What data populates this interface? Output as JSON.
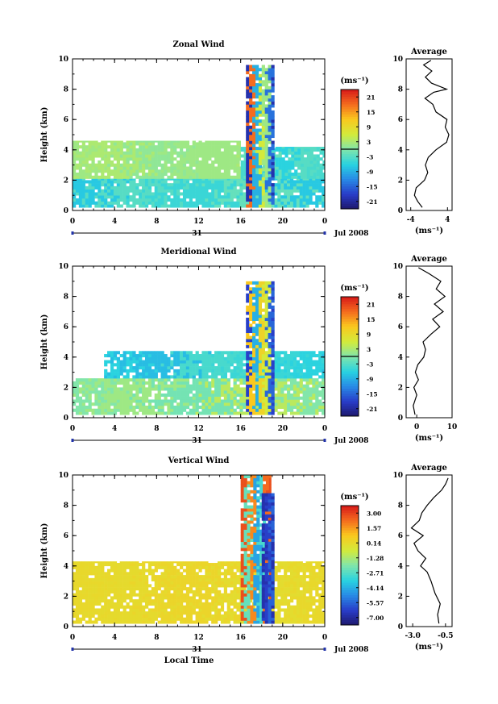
{
  "figure": {
    "xlabel": "Local Time",
    "date_label": "Jul 2008",
    "day_label": "31",
    "average_title": "Average"
  },
  "chart_data": [
    {
      "type": "heatmap",
      "title": "Zonal Wind",
      "xlabel": "",
      "ylabel": "Height (km)",
      "x_ticks": [
        "0",
        "4",
        "8",
        "12",
        "16",
        "20",
        "0"
      ],
      "y_ticks": [
        0,
        2,
        4,
        6,
        8,
        10
      ],
      "ylim": [
        0,
        10
      ],
      "colorbar": {
        "unit": "(ms⁻¹)",
        "ticks": [
          "21",
          "15",
          "9",
          "3",
          "-3",
          "-9",
          "-15",
          "-21"
        ],
        "range": [
          -24,
          24
        ]
      },
      "layers": [
        {
          "desc": "low layer",
          "t0": 0,
          "t1": 24,
          "h0": 0.2,
          "h1": 2.1,
          "values": [
            -7,
            -3,
            -5,
            -2
          ]
        },
        {
          "desc": "mid layer",
          "t0": 0,
          "t1": 16,
          "h0": 2.1,
          "h1": 4.6,
          "values": [
            2,
            3,
            1,
            2
          ]
        },
        {
          "desc": "upper layer",
          "t0": 16,
          "t1": 24,
          "h0": 2.1,
          "h1": 4.2,
          "values": [
            -4,
            -2,
            -6,
            -3
          ]
        },
        {
          "desc": "convective column",
          "t0": 16.5,
          "t1": 19.2,
          "h0": 0.2,
          "h1": 9.6,
          "values": [
            -20,
            18,
            -9,
            6,
            2,
            -14
          ]
        }
      ],
      "average": {
        "xlim": [
          -5,
          5
        ],
        "x_ticks": [
          "-4",
          "4"
        ],
        "unit": "(ms⁻¹)",
        "profile": [
          [
            -1.5,
            0.2
          ],
          [
            -2.5,
            0.6
          ],
          [
            -3.2,
            1.0
          ],
          [
            -2.8,
            1.5
          ],
          [
            -1.0,
            2.0
          ],
          [
            -0.3,
            2.5
          ],
          [
            -0.8,
            3.0
          ],
          [
            -0.2,
            3.5
          ],
          [
            1.5,
            4.0
          ],
          [
            3.8,
            4.5
          ],
          [
            4.3,
            5.0
          ],
          [
            3.5,
            5.5
          ],
          [
            3.9,
            6.0
          ],
          [
            1.5,
            6.5
          ],
          [
            0.8,
            7.0
          ],
          [
            -0.9,
            7.4
          ],
          [
            1.0,
            7.8
          ],
          [
            3.8,
            8.0
          ],
          [
            0.5,
            8.4
          ],
          [
            -0.8,
            8.8
          ],
          [
            0.6,
            9.2
          ],
          [
            -1.2,
            9.6
          ],
          [
            0.4,
            9.9
          ]
        ]
      }
    },
    {
      "type": "heatmap",
      "title": "Meridional Wind",
      "xlabel": "",
      "ylabel": "Height (km)",
      "x_ticks": [
        "0",
        "4",
        "8",
        "12",
        "16",
        "20",
        "0"
      ],
      "y_ticks": [
        0,
        2,
        4,
        6,
        8,
        10
      ],
      "ylim": [
        0,
        10
      ],
      "colorbar": {
        "unit": "(ms⁻¹)",
        "ticks": [
          "21",
          "15",
          "9",
          "3",
          "-3",
          "-9",
          "-15",
          "-21"
        ],
        "range": [
          -24,
          24
        ]
      },
      "layers": [
        {
          "desc": "low layer",
          "t0": 0,
          "t1": 24,
          "h0": 0.2,
          "h1": 2.6,
          "values": [
            0,
            2,
            -1,
            4
          ]
        },
        {
          "desc": "mid layer",
          "t0": 3,
          "t1": 24,
          "h0": 2.6,
          "h1": 4.4,
          "values": [
            -6,
            -8,
            -4,
            -5
          ]
        },
        {
          "desc": "convective column",
          "t0": 16.5,
          "t1": 19.2,
          "h0": 0.2,
          "h1": 9.0,
          "values": [
            -18,
            12,
            -9,
            10,
            6,
            -15
          ]
        }
      ],
      "average": {
        "xlim": [
          -3,
          10
        ],
        "x_ticks": [
          "0",
          "10"
        ],
        "unit": "(ms⁻¹)",
        "profile": [
          [
            -0.5,
            0.2
          ],
          [
            -1.0,
            0.8
          ],
          [
            0.0,
            1.5
          ],
          [
            -0.8,
            2.0
          ],
          [
            0.5,
            2.5
          ],
          [
            -0.4,
            3.0
          ],
          [
            0.3,
            3.5
          ],
          [
            2.0,
            4.0
          ],
          [
            2.5,
            4.5
          ],
          [
            1.8,
            5.0
          ],
          [
            4.0,
            5.5
          ],
          [
            6.5,
            6.0
          ],
          [
            4.5,
            6.5
          ],
          [
            7.5,
            7.0
          ],
          [
            5.0,
            7.5
          ],
          [
            8.0,
            8.0
          ],
          [
            5.5,
            8.5
          ],
          [
            6.8,
            9.0
          ],
          [
            3.5,
            9.5
          ],
          [
            0.5,
            9.9
          ]
        ]
      }
    },
    {
      "type": "heatmap",
      "title": "Vertical Wind",
      "xlabel": "Local Time",
      "ylabel": "Height (km)",
      "x_ticks": [
        "0",
        "4",
        "8",
        "12",
        "16",
        "20",
        "0"
      ],
      "y_ticks": [
        0,
        2,
        4,
        6,
        8,
        10
      ],
      "ylim": [
        0,
        10
      ],
      "colorbar": {
        "unit": "(ms⁻¹)",
        "ticks": [
          "3.00",
          "1.57",
          "0.14",
          "-1.28",
          "-2.71",
          "-4.14",
          "-5.57",
          "-7.00"
        ],
        "range": [
          -8.0,
          4.0
        ]
      },
      "layers": [
        {
          "desc": "background",
          "t0": 0,
          "t1": 24,
          "h0": 0.2,
          "h1": 4.3,
          "values": [
            0.3,
            0.2,
            0.4,
            0.1
          ]
        },
        {
          "desc": "convective column",
          "t0": 16.0,
          "t1": 18.9,
          "h0": 0.2,
          "h1": 10.0,
          "values": [
            3.0,
            -2.5,
            2.0,
            -4.5,
            -3.0,
            2.5
          ]
        },
        {
          "desc": "downdraft",
          "t0": 18.0,
          "t1": 19.2,
          "h0": 0.2,
          "h1": 8.8,
          "values": [
            -7.0,
            -6.5,
            -5.8
          ]
        }
      ],
      "average": {
        "xlim": [
          -3.5,
          0.0
        ],
        "x_ticks": [
          "-3.0",
          "-0.5"
        ],
        "unit": "(ms⁻¹)",
        "profile": [
          [
            -1.0,
            0.2
          ],
          [
            -1.1,
            0.8
          ],
          [
            -0.9,
            1.5
          ],
          [
            -1.3,
            2.2
          ],
          [
            -1.6,
            3.0
          ],
          [
            -1.9,
            3.6
          ],
          [
            -2.4,
            4.0
          ],
          [
            -2.0,
            4.5
          ],
          [
            -2.6,
            5.0
          ],
          [
            -2.9,
            5.5
          ],
          [
            -2.2,
            6.0
          ],
          [
            -3.1,
            6.5
          ],
          [
            -2.5,
            7.0
          ],
          [
            -2.3,
            7.5
          ],
          [
            -1.9,
            8.0
          ],
          [
            -1.4,
            8.5
          ],
          [
            -0.8,
            9.0
          ],
          [
            -0.5,
            9.4
          ],
          [
            -0.3,
            9.8
          ]
        ]
      }
    }
  ]
}
